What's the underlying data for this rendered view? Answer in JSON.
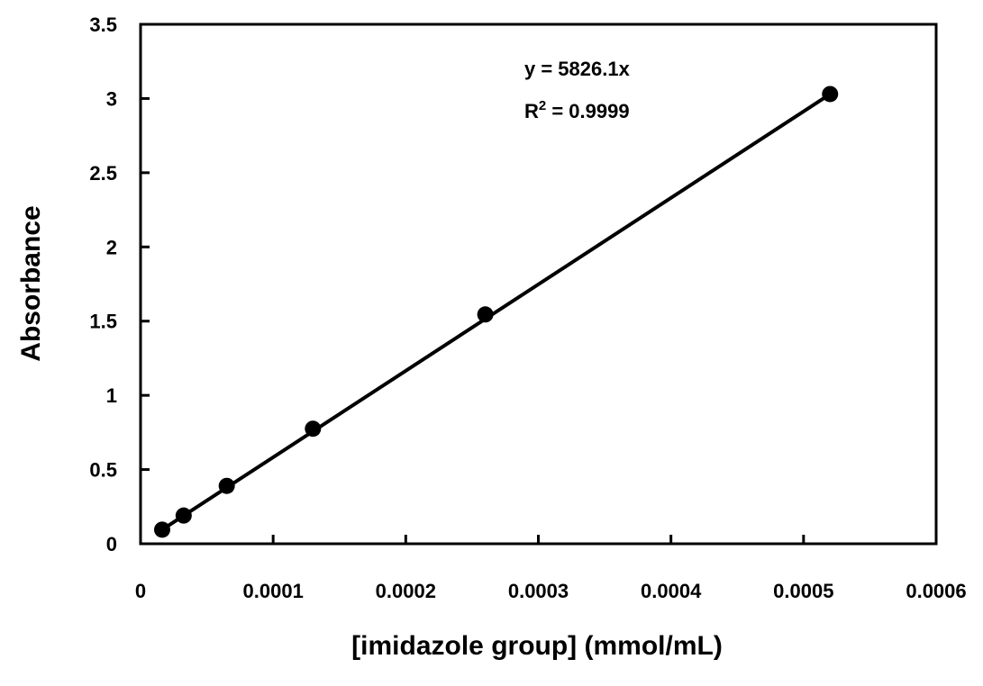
{
  "chart_data": {
    "type": "scatter",
    "xlabel": "[imidazole group] (mmol/mL)",
    "ylabel": "Absorbance",
    "xlim": [
      0,
      0.0006
    ],
    "ylim": [
      0,
      3.5
    ],
    "x_ticks": [
      "0",
      "0.0001",
      "0.0002",
      "0.0003",
      "0.0004",
      "0.0005",
      "0.0006"
    ],
    "y_ticks": [
      "0",
      "0.5",
      "1",
      "1.5",
      "2",
      "2.5",
      "3",
      "3.5"
    ],
    "grid": false,
    "series": [
      {
        "marker": "filled-circle",
        "color": "#000000",
        "points": [
          {
            "x": 1.63e-05,
            "y": 0.095
          },
          {
            "x": 3.25e-05,
            "y": 0.19
          },
          {
            "x": 6.5e-05,
            "y": 0.39
          },
          {
            "x": 0.00013,
            "y": 0.775
          },
          {
            "x": 0.00026,
            "y": 1.545
          },
          {
            "x": 0.00052,
            "y": 3.03
          }
        ]
      }
    ],
    "trendline": {
      "type": "linear-through-origin",
      "slope": 5826.1,
      "x_range": [
        1.63e-05,
        0.00052
      ],
      "equation_label": "y = 5826.1x",
      "r2_prefix": "R",
      "r2_superscript": "2",
      "r2_suffix": " = 0.9999"
    }
  }
}
